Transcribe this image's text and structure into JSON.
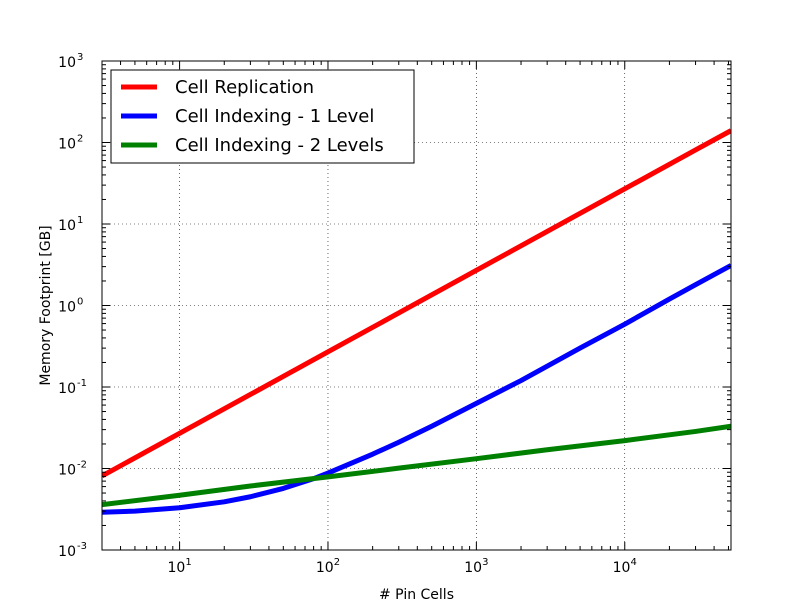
{
  "chart_data": {
    "type": "line",
    "title": "",
    "xlabel": "# Pin Cells",
    "ylabel": "Memory Footprint [GB]",
    "xscale": "log",
    "yscale": "log",
    "xlim": [
      3,
      52000
    ],
    "ylim": [
      0.001,
      1000
    ],
    "grid": true,
    "legend_position": "top-left",
    "x_ticks": [
      {
        "value": 10,
        "base": "10",
        "exp": "1"
      },
      {
        "value": 100,
        "base": "10",
        "exp": "2"
      },
      {
        "value": 1000,
        "base": "10",
        "exp": "3"
      },
      {
        "value": 10000,
        "base": "10",
        "exp": "4"
      }
    ],
    "y_ticks": [
      {
        "value": 0.001,
        "base": "10",
        "exp": "-3"
      },
      {
        "value": 0.01,
        "base": "10",
        "exp": "-2"
      },
      {
        "value": 0.1,
        "base": "10",
        "exp": "-1"
      },
      {
        "value": 1,
        "base": "10",
        "exp": "0"
      },
      {
        "value": 10,
        "base": "10",
        "exp": "1"
      },
      {
        "value": 100,
        "base": "10",
        "exp": "2"
      },
      {
        "value": 1000,
        "base": "10",
        "exp": "3"
      }
    ],
    "series": [
      {
        "name": "Cell Replication",
        "color": "#ff0000",
        "x": [
          3,
          10,
          30,
          100,
          300,
          1000,
          3000,
          10000,
          30000,
          52000
        ],
        "y": [
          0.0081,
          0.027,
          0.081,
          0.27,
          0.81,
          2.7,
          8.1,
          27,
          81,
          140
        ]
      },
      {
        "name": "Cell Indexing - 1 Level",
        "color": "#0000ff",
        "x": [
          3,
          5,
          10,
          20,
          30,
          50,
          80,
          100,
          200,
          300,
          500,
          1000,
          2000,
          3000,
          5000,
          10000,
          20000,
          30000,
          52000
        ],
        "y": [
          0.0029,
          0.003,
          0.0033,
          0.0039,
          0.0045,
          0.0057,
          0.0075,
          0.0088,
          0.015,
          0.021,
          0.033,
          0.063,
          0.12,
          0.18,
          0.3,
          0.59,
          1.2,
          1.8,
          3.1
        ]
      },
      {
        "name": "Cell Indexing - 2 Levels",
        "color": "#008000",
        "x": [
          3,
          10,
          30,
          100,
          300,
          1000,
          3000,
          10000,
          30000,
          52000
        ],
        "y": [
          0.0036,
          0.0047,
          0.0061,
          0.0079,
          0.0101,
          0.0132,
          0.017,
          0.022,
          0.0285,
          0.033
        ]
      }
    ]
  }
}
